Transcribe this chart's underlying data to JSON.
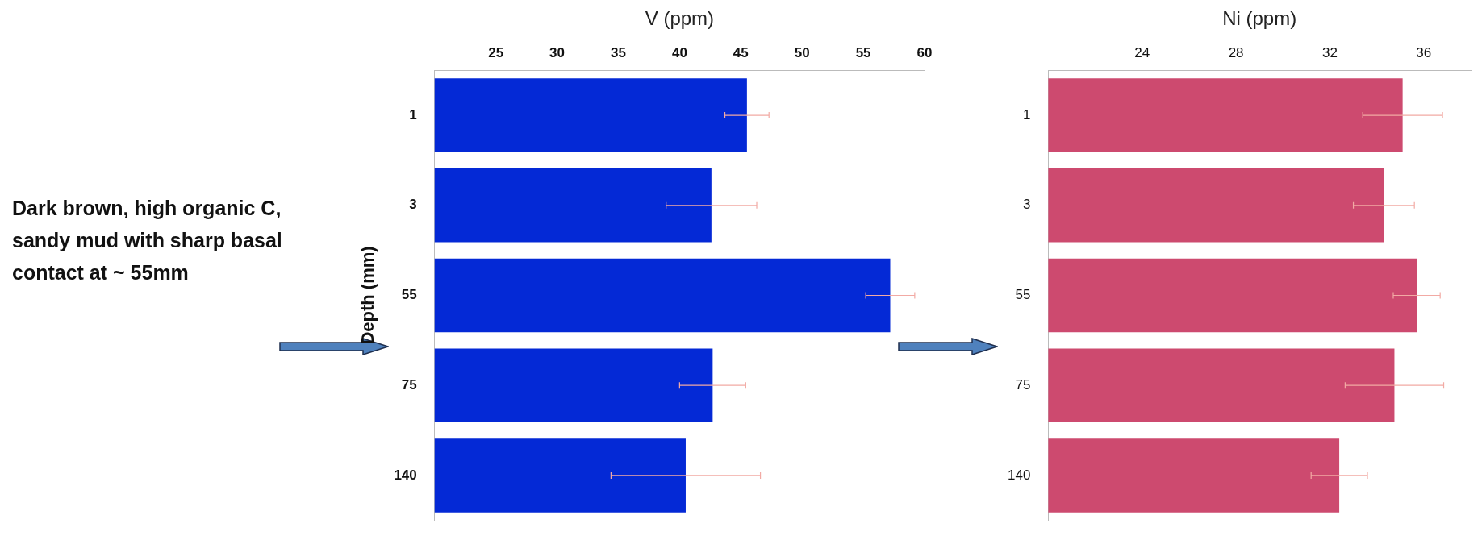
{
  "chart_data": [
    {
      "type": "bar",
      "orientation": "horizontal",
      "xlabel": "V (ppm)",
      "ylabel": "Depth (mm)",
      "categories": [
        "1",
        "3",
        "55",
        "75",
        "140"
      ],
      "values": [
        45.5,
        42.6,
        57.2,
        42.7,
        40.5
      ],
      "errors": [
        1.8,
        3.7,
        2.0,
        2.7,
        6.1
      ],
      "color": "#0429d6",
      "xlim": [
        20,
        60
      ],
      "xticks": [
        25,
        30,
        35,
        40,
        45,
        50,
        55,
        60
      ],
      "grid": false,
      "legend": false,
      "annotations": [
        "Dark brown, high organic C, sandy mud with sharp basal contact at ~ 55mm"
      ]
    },
    {
      "type": "bar",
      "orientation": "horizontal",
      "xlabel": "Ni (ppm)",
      "categories": [
        "1",
        "3",
        "55",
        "75",
        "140"
      ],
      "values": [
        35.1,
        34.3,
        35.7,
        34.75,
        32.4
      ],
      "errors": [
        1.7,
        1.3,
        1.0,
        2.1,
        1.2
      ],
      "color": "#cd4a6f",
      "xlim": [
        20,
        38
      ],
      "xticks": [
        24,
        28,
        32,
        36
      ],
      "grid": false,
      "legend": false
    }
  ]
}
